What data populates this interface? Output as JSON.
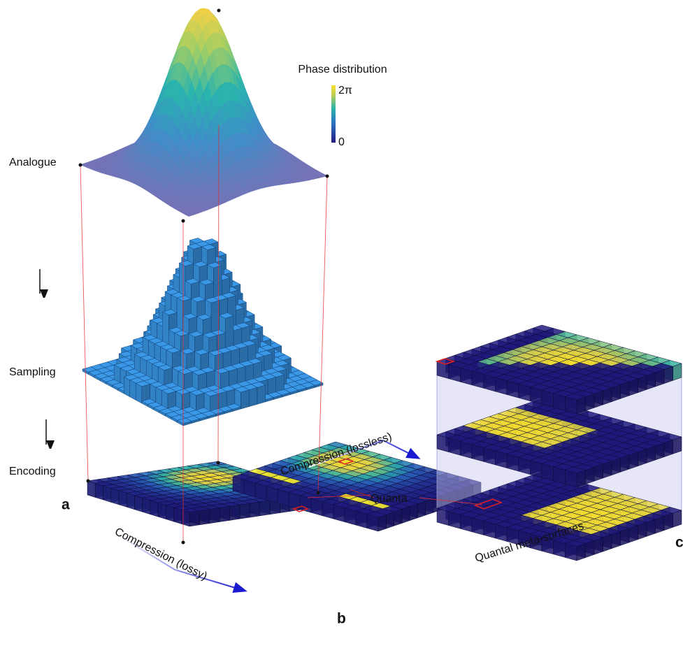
{
  "labels": {
    "analogue": "Analogue",
    "sampling": "Sampling",
    "encoding": "Encoding",
    "panel_a": "a",
    "panel_b": "b",
    "panel_c": "c",
    "quanta": "Quanta",
    "compression_lossless": "Compression (lossless)",
    "compression_lossy": "Compression (lossy)",
    "quantal_meta_surfaces": "Quantal meta-surfaces"
  },
  "colorbar": {
    "title": "Phase distribution",
    "max_label": "2π",
    "min_label": "0"
  }
}
